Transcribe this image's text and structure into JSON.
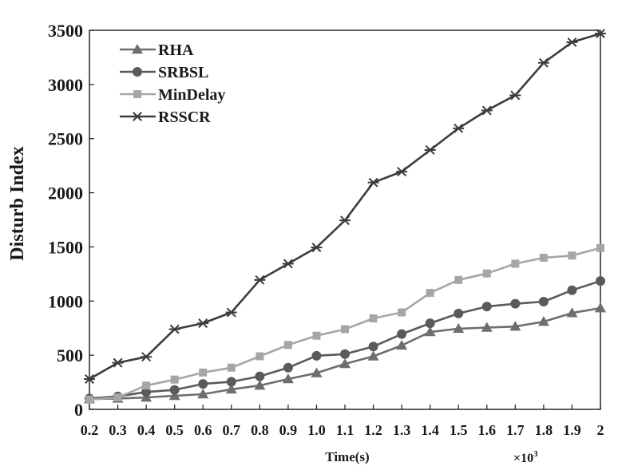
{
  "chart_data": {
    "type": "line",
    "title": "",
    "xlabel": "Time(s)",
    "ylabel": "Disturb Index",
    "x_multiplier_label": "×10",
    "x_multiplier_exp": "3",
    "x": [
      0.2,
      0.3,
      0.4,
      0.5,
      0.6,
      0.7,
      0.8,
      0.9,
      1.0,
      1.1,
      1.2,
      1.3,
      1.4,
      1.5,
      1.6,
      1.7,
      1.8,
      1.9,
      2
    ],
    "x_tick_labels": [
      "0.2",
      "0.3",
      "0.4",
      "0.5",
      "0.6",
      "0.7",
      "0.8",
      "0.9",
      "1.0",
      "1.1",
      "1.2",
      "1.3",
      "1.4",
      "1.5",
      "1.6",
      "1.7",
      "1.8",
      "1.9",
      "2"
    ],
    "ylim": [
      0,
      3500
    ],
    "y_ticks": [
      0,
      500,
      1000,
      1500,
      2000,
      2500,
      3000,
      3500
    ],
    "y_tick_labels": [
      "0",
      "500",
      "1000",
      "1500",
      "2000",
      "2500",
      "3000",
      "3500"
    ],
    "grid": false,
    "legend_position": "top-left",
    "series": [
      {
        "name": "RHA",
        "marker": "triangle",
        "color": "#6e6e6e",
        "values": [
          95,
          100,
          110,
          125,
          140,
          185,
          220,
          280,
          335,
          420,
          490,
          590,
          715,
          745,
          755,
          765,
          810,
          890,
          935
        ]
      },
      {
        "name": "SRBSL",
        "marker": "circle",
        "color": "#5a5a5a",
        "values": [
          100,
          120,
          160,
          180,
          235,
          255,
          305,
          385,
          495,
          510,
          580,
          695,
          795,
          885,
          950,
          975,
          995,
          1100,
          1185
        ]
      },
      {
        "name": "MinDelay",
        "marker": "square",
        "color": "#a6a6a6",
        "values": [
          90,
          110,
          220,
          275,
          340,
          385,
          490,
          595,
          680,
          740,
          840,
          895,
          1075,
          1195,
          1255,
          1345,
          1400,
          1420,
          1490
        ]
      },
      {
        "name": "RSSCR",
        "marker": "asterisk",
        "color": "#3c3c3c",
        "values": [
          280,
          430,
          485,
          740,
          795,
          895,
          1195,
          1345,
          1495,
          1745,
          2095,
          2195,
          2395,
          2595,
          2760,
          2900,
          3200,
          3390,
          3470
        ]
      }
    ]
  }
}
